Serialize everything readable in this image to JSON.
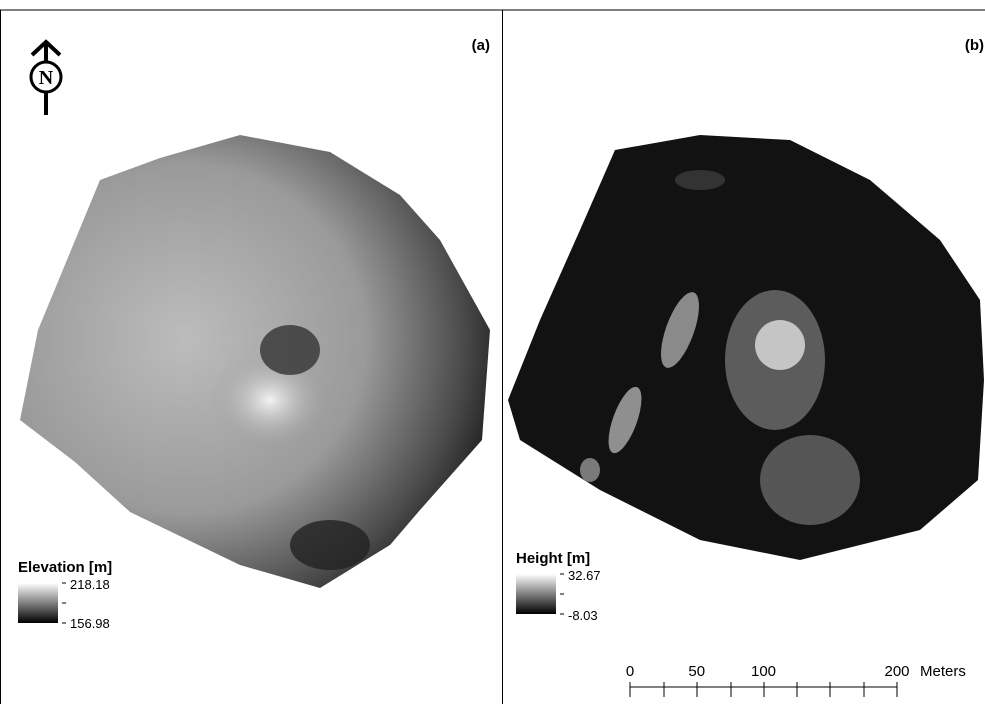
{
  "panels": [
    {
      "label": "(a)",
      "legend": {
        "title": "Elevation [m]",
        "max": 218.18,
        "min": 156.98
      }
    },
    {
      "label": "(b)",
      "legend": {
        "title": "Height [m]",
        "max": 32.67,
        "min": -8.03
      }
    }
  ],
  "north_arrow": "N",
  "scale_bar": {
    "ticks": [
      0,
      50,
      100,
      200
    ],
    "unit": "Meters"
  }
}
